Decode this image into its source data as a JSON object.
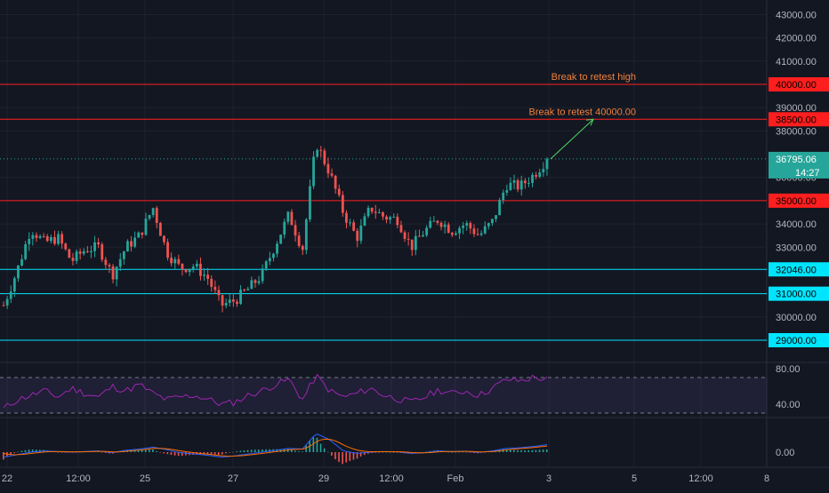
{
  "chart_data": {
    "type": "candlestick",
    "symbol_price_axis": {
      "ticks": [
        "43000.00",
        "42000.00",
        "41000.00",
        "39000.00",
        "38000.00",
        "36000.00",
        "34000.00",
        "33000.00",
        "30000.00"
      ],
      "tick_values": [
        43000,
        42000,
        41000,
        39000,
        38000,
        36000,
        34000,
        33000,
        30000
      ],
      "range": [
        28000,
        43500
      ]
    },
    "time_axis": {
      "labels": [
        "22",
        "12:00",
        "25",
        "27",
        "29",
        "12:00",
        "Feb",
        "3",
        "5",
        "12:00",
        "8"
      ],
      "label_positions_index": [
        0,
        1,
        2,
        3,
        4,
        5,
        6,
        7,
        8,
        9,
        10
      ]
    },
    "current_price": {
      "label": "36795.06",
      "value": 36795.06,
      "countdown": "14:27",
      "color": "#26a69a"
    },
    "levels": [
      {
        "value": 40000,
        "label": "40000.00",
        "color": "#ff1e1e"
      },
      {
        "value": 38500,
        "label": "38500.00",
        "color": "#ff1e1e"
      },
      {
        "value": 35000,
        "label": "35000.00",
        "color": "#ff1e1e"
      },
      {
        "value": 32046,
        "label": "32046.00",
        "color": "#00e5ff"
      },
      {
        "value": 31000,
        "label": "31000.00",
        "color": "#00e5ff"
      },
      {
        "value": 29000,
        "label": "29000.00",
        "color": "#00e5ff"
      }
    ],
    "annotations": [
      {
        "text": "Break to retest high",
        "level": 40000,
        "color": "#f0803c"
      },
      {
        "text": "Break to retest 40000.00",
        "level": 38500,
        "color": "#f0803c"
      }
    ],
    "arrow": {
      "from": {
        "t": 0.0,
        "v": 36795
      },
      "to": {
        "t": 1.0,
        "v": 38500
      },
      "color": "#4cd964"
    },
    "close_path": [
      30500,
      32000,
      33800,
      33200,
      33400,
      32400,
      32900,
      33000,
      31800,
      33000,
      33500,
      34700,
      32800,
      32100,
      32200,
      31700,
      30500,
      30700,
      31200,
      31800,
      33100,
      34400,
      32900,
      37500,
      36200,
      34500,
      33400,
      34700,
      34300,
      34200,
      33000,
      33700,
      34200,
      33700,
      34000,
      33500,
      34100,
      35700,
      35600,
      36100,
      36795
    ],
    "candles_colors": {
      "up": "#26a69a",
      "down": "#ef5350"
    },
    "rsi": {
      "ticks": [
        "80.00",
        "40.00"
      ],
      "tick_values": [
        80,
        40
      ],
      "upper_band": 70,
      "lower_band": 30,
      "color": "#9c27b0",
      "values": [
        35,
        45,
        50,
        55,
        48,
        58,
        52,
        48,
        60,
        55,
        62,
        52,
        45,
        48,
        50,
        46,
        40,
        42,
        50,
        55,
        62,
        68,
        45,
        72,
        55,
        48,
        52,
        58,
        50,
        46,
        42,
        48,
        56,
        52,
        55,
        50,
        58,
        68,
        66,
        70,
        68
      ]
    },
    "macd": {
      "ticks": [
        "0.00"
      ],
      "tick_values": [
        0
      ],
      "macd_color": "#2962ff",
      "signal_color": "#ff6d00",
      "values": [
        -80,
        -40,
        0,
        20,
        10,
        0,
        10,
        20,
        -10,
        30,
        50,
        80,
        40,
        -10,
        -30,
        -50,
        -80,
        -60,
        -30,
        0,
        30,
        60,
        50,
        300,
        200,
        20,
        -20,
        0,
        10,
        5,
        -20,
        -10,
        20,
        10,
        15,
        -5,
        20,
        60,
        70,
        90,
        120
      ]
    }
  }
}
